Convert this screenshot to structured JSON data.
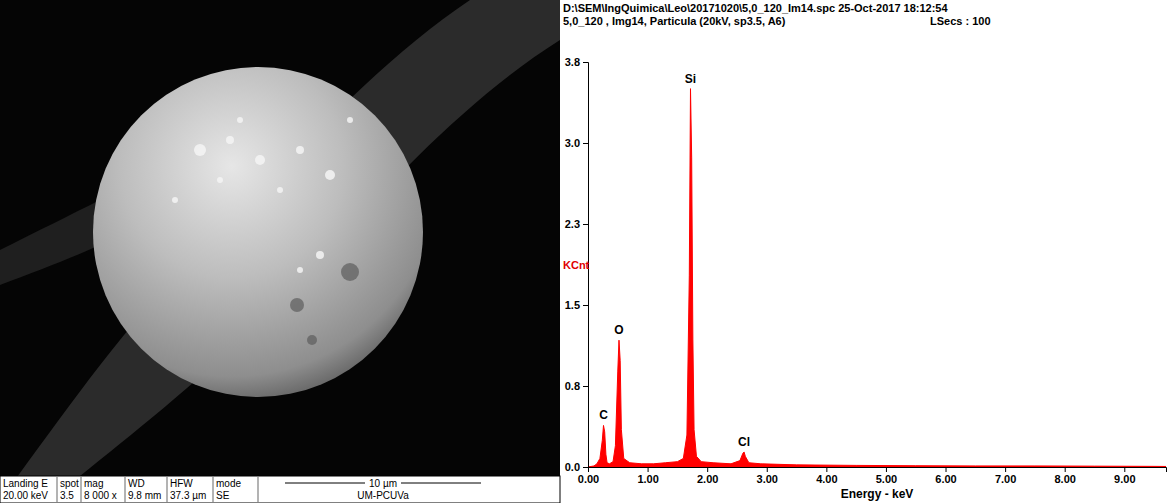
{
  "chart_data": {
    "type": "area",
    "title": "D:\\SEM\\IngQuimica\\Leo\\20171020\\5,0_120_Im14.spc  25-Oct-2017 18:12:54",
    "subtitle": "5,0_120 , Img14, Particula (20kV, sp3.5, A6)",
    "live_time_label": "LSecs : 100",
    "x_label": "Energy - keV",
    "y_label": "KCnt",
    "color": "#ff0000",
    "x": [
      0.0,
      0.1,
      0.15,
      0.2,
      0.24,
      0.26,
      0.28,
      0.3,
      0.32,
      0.36,
      0.42,
      0.46,
      0.5,
      0.52,
      0.54,
      0.56,
      0.6,
      0.7,
      0.9,
      1.1,
      1.3,
      1.5,
      1.6,
      1.66,
      1.7,
      1.72,
      1.74,
      1.76,
      1.78,
      1.82,
      1.9,
      2.1,
      2.4,
      2.55,
      2.6,
      2.62,
      2.64,
      2.7,
      2.9,
      3.5,
      4.5,
      5.5,
      6.5,
      7.5,
      8.5,
      9.5,
      9.7
    ],
    "values": [
      0,
      0.01,
      0.03,
      0.08,
      0.25,
      0.39,
      0.33,
      0.12,
      0.04,
      0.03,
      0.05,
      0.2,
      0.9,
      1.19,
      1.0,
      0.35,
      0.08,
      0.04,
      0.03,
      0.03,
      0.04,
      0.05,
      0.08,
      0.3,
      1.8,
      3.55,
      2.9,
      1.2,
      0.35,
      0.1,
      0.05,
      0.04,
      0.03,
      0.06,
      0.13,
      0.14,
      0.1,
      0.04,
      0.03,
      0.02,
      0.015,
      0.012,
      0.01,
      0.01,
      0.008,
      0.006,
      0.005
    ],
    "xlim": [
      0,
      9.7
    ],
    "xticks": [
      {
        "value": 0,
        "label": "0.00"
      },
      {
        "value": 1,
        "label": "1.00"
      },
      {
        "value": 2,
        "label": "2.00"
      },
      {
        "value": 3,
        "label": "3.00"
      },
      {
        "value": 4,
        "label": "4.00"
      },
      {
        "value": 5,
        "label": "5.00"
      },
      {
        "value": 6,
        "label": "6.00"
      },
      {
        "value": 7,
        "label": "7.00"
      },
      {
        "value": 8,
        "label": "8.00"
      },
      {
        "value": 9,
        "label": "9.00"
      }
    ],
    "ylim": [
      0,
      3.8
    ],
    "yticks": [
      {
        "value": 0,
        "label": "0.0"
      },
      {
        "value": 0.76,
        "label": "0.8"
      },
      {
        "value": 1.52,
        "label": "1.5"
      },
      {
        "value": 2.28,
        "label": "2.3"
      },
      {
        "value": 3.04,
        "label": "3.0"
      },
      3.8
    ],
    "grid": false,
    "annotations": [
      {
        "text": "C",
        "x": 0.26,
        "y": 0.39
      },
      {
        "text": "O",
        "x": 0.52,
        "y": 1.19
      },
      {
        "text": "Si",
        "x": 1.72,
        "y": 3.55
      },
      {
        "text": "Cl",
        "x": 2.62,
        "y": 0.14
      }
    ]
  },
  "sem_image": {
    "info_header": [
      "Landing E",
      "spot",
      "mag",
      "WD",
      "HFW",
      "mode"
    ],
    "info_values": [
      "20.00 keV",
      "3.5",
      "8 000 x",
      "9.8 mm",
      "37.3 µm",
      "SE"
    ],
    "scale_bar": "10 µm",
    "label": "UM-PCUVa"
  }
}
